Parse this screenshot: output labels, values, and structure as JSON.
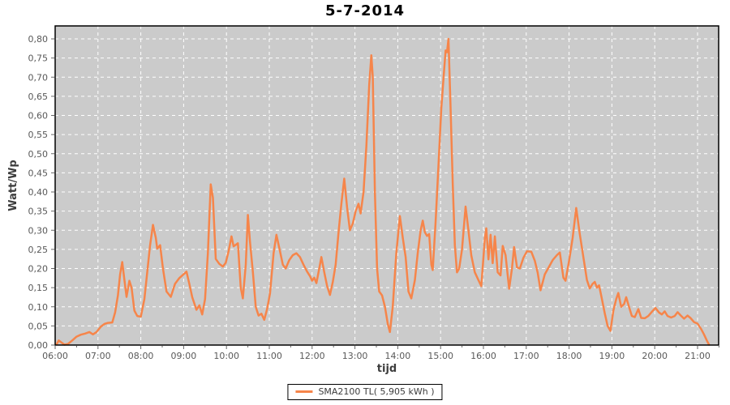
{
  "chart_data": {
    "type": "line",
    "title": "5-7-2014",
    "xlabel": "tijd",
    "ylabel": "Watt/Wp",
    "grid": true,
    "legend_position": "bottom",
    "x_tick_labels": [
      "06:00",
      "07:00",
      "08:00",
      "09:00",
      "10:00",
      "11:00",
      "12:00",
      "13:00",
      "14:00",
      "15:00",
      "16:00",
      "17:00",
      "18:00",
      "19:00",
      "20:00",
      "21:00"
    ],
    "y_tick_labels": [
      "0,00",
      "0,05",
      "0,10",
      "0,15",
      "0,20",
      "0,25",
      "0,30",
      "0,35",
      "0,40",
      "0,45",
      "0,50",
      "0,55",
      "0,60",
      "0,65",
      "0,70",
      "0,75",
      "0,80"
    ],
    "y_tick_step": 0.05,
    "ylim": [
      0,
      0.835
    ],
    "series": [
      {
        "name": "SMA2100 TL( 5,905 kWh )",
        "color": "#f6854a",
        "points": [
          [
            "06:02",
            0.002
          ],
          [
            "06:05",
            0.012
          ],
          [
            "06:08",
            0.008
          ],
          [
            "06:13",
            0.001
          ],
          [
            "06:18",
            0.003
          ],
          [
            "06:24",
            0.012
          ],
          [
            "06:30",
            0.022
          ],
          [
            "06:36",
            0.027
          ],
          [
            "06:42",
            0.03
          ],
          [
            "06:48",
            0.034
          ],
          [
            "06:53",
            0.028
          ],
          [
            "06:58",
            0.034
          ],
          [
            "07:04",
            0.048
          ],
          [
            "07:09",
            0.055
          ],
          [
            "07:14",
            0.058
          ],
          [
            "07:20",
            0.059
          ],
          [
            "07:24",
            0.085
          ],
          [
            "07:28",
            0.13
          ],
          [
            "07:31",
            0.185
          ],
          [
            "07:34",
            0.217
          ],
          [
            "07:37",
            0.17
          ],
          [
            "07:40",
            0.126
          ],
          [
            "07:44",
            0.168
          ],
          [
            "07:47",
            0.15
          ],
          [
            "07:51",
            0.09
          ],
          [
            "07:55",
            0.076
          ],
          [
            "08:00",
            0.074
          ],
          [
            "08:05",
            0.12
          ],
          [
            "08:09",
            0.19
          ],
          [
            "08:13",
            0.26
          ],
          [
            "08:17",
            0.314
          ],
          [
            "08:21",
            0.28
          ],
          [
            "08:23",
            0.252
          ],
          [
            "08:27",
            0.261
          ],
          [
            "08:31",
            0.2
          ],
          [
            "08:36",
            0.14
          ],
          [
            "08:42",
            0.126
          ],
          [
            "08:48",
            0.16
          ],
          [
            "08:54",
            0.175
          ],
          [
            "09:00",
            0.185
          ],
          [
            "09:04",
            0.192
          ],
          [
            "09:08",
            0.16
          ],
          [
            "09:12",
            0.125
          ],
          [
            "09:18",
            0.092
          ],
          [
            "09:22",
            0.104
          ],
          [
            "09:26",
            0.08
          ],
          [
            "09:30",
            0.12
          ],
          [
            "09:34",
            0.24
          ],
          [
            "09:38",
            0.42
          ],
          [
            "09:41",
            0.385
          ],
          [
            "09:45",
            0.225
          ],
          [
            "09:50",
            0.212
          ],
          [
            "09:55",
            0.205
          ],
          [
            "09:59",
            0.215
          ],
          [
            "10:03",
            0.245
          ],
          [
            "10:07",
            0.284
          ],
          [
            "10:10",
            0.258
          ],
          [
            "10:13",
            0.262
          ],
          [
            "10:16",
            0.266
          ],
          [
            "10:20",
            0.15
          ],
          [
            "10:23",
            0.122
          ],
          [
            "10:27",
            0.21
          ],
          [
            "10:30",
            0.34
          ],
          [
            "10:33",
            0.27
          ],
          [
            "10:37",
            0.19
          ],
          [
            "10:41",
            0.1
          ],
          [
            "10:45",
            0.077
          ],
          [
            "10:49",
            0.082
          ],
          [
            "10:53",
            0.066
          ],
          [
            "10:57",
            0.095
          ],
          [
            "11:01",
            0.135
          ],
          [
            "11:06",
            0.24
          ],
          [
            "11:10",
            0.288
          ],
          [
            "11:15",
            0.245
          ],
          [
            "11:19",
            0.21
          ],
          [
            "11:23",
            0.2
          ],
          [
            "11:28",
            0.222
          ],
          [
            "11:33",
            0.235
          ],
          [
            "11:38",
            0.24
          ],
          [
            "11:43",
            0.23
          ],
          [
            "11:48",
            0.21
          ],
          [
            "11:53",
            0.192
          ],
          [
            "11:57",
            0.18
          ],
          [
            "12:00",
            0.168
          ],
          [
            "12:03",
            0.176
          ],
          [
            "12:06",
            0.162
          ],
          [
            "12:10",
            0.2
          ],
          [
            "12:13",
            0.23
          ],
          [
            "12:17",
            0.19
          ],
          [
            "12:21",
            0.154
          ],
          [
            "12:25",
            0.131
          ],
          [
            "12:29",
            0.165
          ],
          [
            "12:33",
            0.21
          ],
          [
            "12:37",
            0.295
          ],
          [
            "12:41",
            0.37
          ],
          [
            "12:45",
            0.435
          ],
          [
            "12:49",
            0.36
          ],
          [
            "12:53",
            0.3
          ],
          [
            "12:57",
            0.318
          ],
          [
            "13:01",
            0.35
          ],
          [
            "13:05",
            0.369
          ],
          [
            "13:08",
            0.344
          ],
          [
            "13:12",
            0.4
          ],
          [
            "13:16",
            0.52
          ],
          [
            "13:20",
            0.68
          ],
          [
            "13:23",
            0.757
          ],
          [
            "13:25",
            0.7
          ],
          [
            "13:28",
            0.4
          ],
          [
            "13:31",
            0.2
          ],
          [
            "13:34",
            0.14
          ],
          [
            "13:38",
            0.13
          ],
          [
            "13:42",
            0.1
          ],
          [
            "13:46",
            0.055
          ],
          [
            "13:49",
            0.034
          ],
          [
            "13:53",
            0.1
          ],
          [
            "13:58",
            0.24
          ],
          [
            "14:03",
            0.337
          ],
          [
            "14:07",
            0.28
          ],
          [
            "14:11",
            0.23
          ],
          [
            "14:15",
            0.14
          ],
          [
            "14:19",
            0.122
          ],
          [
            "14:24",
            0.17
          ],
          [
            "14:28",
            0.24
          ],
          [
            "14:32",
            0.3
          ],
          [
            "14:35",
            0.325
          ],
          [
            "14:38",
            0.295
          ],
          [
            "14:41",
            0.285
          ],
          [
            "14:44",
            0.29
          ],
          [
            "14:47",
            0.21
          ],
          [
            "14:49",
            0.196
          ],
          [
            "14:53",
            0.32
          ],
          [
            "14:57",
            0.47
          ],
          [
            "15:01",
            0.62
          ],
          [
            "15:05",
            0.72
          ],
          [
            "15:07",
            0.77
          ],
          [
            "15:09",
            0.765
          ],
          [
            "15:11",
            0.8
          ],
          [
            "15:14",
            0.62
          ],
          [
            "15:17",
            0.42
          ],
          [
            "15:20",
            0.26
          ],
          [
            "15:23",
            0.19
          ],
          [
            "15:26",
            0.2
          ],
          [
            "15:30",
            0.25
          ],
          [
            "15:35",
            0.362
          ],
          [
            "15:39",
            0.3
          ],
          [
            "15:43",
            0.235
          ],
          [
            "15:48",
            0.19
          ],
          [
            "15:53",
            0.17
          ],
          [
            "15:57",
            0.154
          ],
          [
            "16:02",
            0.28
          ],
          [
            "16:04",
            0.305
          ],
          [
            "16:07",
            0.224
          ],
          [
            "16:10",
            0.288
          ],
          [
            "16:13",
            0.214
          ],
          [
            "16:16",
            0.284
          ],
          [
            "16:20",
            0.19
          ],
          [
            "16:24",
            0.182
          ],
          [
            "16:27",
            0.259
          ],
          [
            "16:31",
            0.235
          ],
          [
            "16:36",
            0.147
          ],
          [
            "16:40",
            0.2
          ],
          [
            "16:43",
            0.256
          ],
          [
            "16:47",
            0.203
          ],
          [
            "16:51",
            0.2
          ],
          [
            "16:56",
            0.228
          ],
          [
            "17:01",
            0.245
          ],
          [
            "17:07",
            0.244
          ],
          [
            "17:12",
            0.22
          ],
          [
            "17:16",
            0.189
          ],
          [
            "17:20",
            0.143
          ],
          [
            "17:26",
            0.185
          ],
          [
            "17:32",
            0.205
          ],
          [
            "17:37",
            0.222
          ],
          [
            "17:43",
            0.235
          ],
          [
            "17:47",
            0.242
          ],
          [
            "17:52",
            0.176
          ],
          [
            "17:55",
            0.168
          ],
          [
            "18:00",
            0.22
          ],
          [
            "18:05",
            0.28
          ],
          [
            "18:10",
            0.358
          ],
          [
            "18:15",
            0.29
          ],
          [
            "18:20",
            0.23
          ],
          [
            "18:25",
            0.17
          ],
          [
            "18:29",
            0.148
          ],
          [
            "18:33",
            0.16
          ],
          [
            "18:36",
            0.165
          ],
          [
            "18:39",
            0.15
          ],
          [
            "18:42",
            0.156
          ],
          [
            "18:46",
            0.12
          ],
          [
            "18:50",
            0.083
          ],
          [
            "18:54",
            0.05
          ],
          [
            "18:58",
            0.037
          ],
          [
            "19:02",
            0.09
          ],
          [
            "19:06",
            0.12
          ],
          [
            "19:09",
            0.136
          ],
          [
            "19:13",
            0.1
          ],
          [
            "19:17",
            0.107
          ],
          [
            "19:20",
            0.125
          ],
          [
            "19:24",
            0.1
          ],
          [
            "19:28",
            0.076
          ],
          [
            "19:32",
            0.073
          ],
          [
            "19:37",
            0.094
          ],
          [
            "19:41",
            0.071
          ],
          [
            "19:46",
            0.07
          ],
          [
            "19:51",
            0.076
          ],
          [
            "19:56",
            0.087
          ],
          [
            "20:01",
            0.097
          ],
          [
            "20:06",
            0.085
          ],
          [
            "20:10",
            0.08
          ],
          [
            "20:14",
            0.088
          ],
          [
            "20:18",
            0.076
          ],
          [
            "20:23",
            0.072
          ],
          [
            "20:28",
            0.076
          ],
          [
            "20:32",
            0.086
          ],
          [
            "20:36",
            0.078
          ],
          [
            "20:41",
            0.069
          ],
          [
            "20:46",
            0.077
          ],
          [
            "20:50",
            0.071
          ],
          [
            "20:55",
            0.06
          ],
          [
            "21:00",
            0.056
          ],
          [
            "21:05",
            0.042
          ],
          [
            "21:09",
            0.028
          ],
          [
            "21:13",
            0.012
          ],
          [
            "21:16",
            0.001
          ]
        ]
      }
    ]
  },
  "colors": {
    "outer_background": "#ffffff",
    "plot_background": "#cbcbcb",
    "gridline": "#ffffff",
    "plot_border": "#000000",
    "tick": "#666666",
    "tick_label": "#595959",
    "line": "#f6854a",
    "title": "#000000"
  }
}
